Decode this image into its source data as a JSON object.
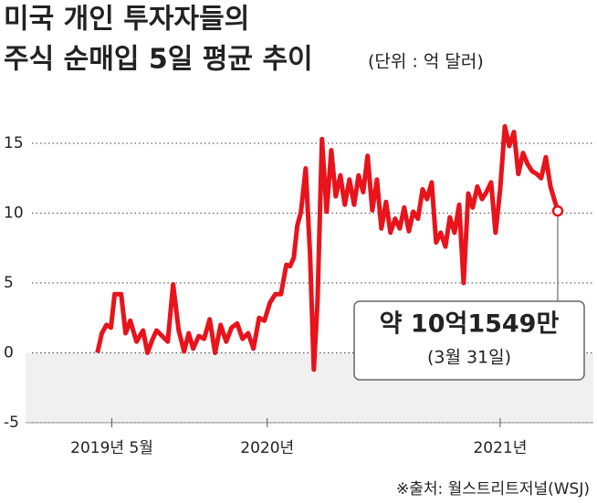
{
  "chart_data": {
    "type": "line",
    "title": "미국 개인 투자자들의",
    "subtitle": "주식 순매입 5일 평균 추이",
    "unit": "(단위 : 억 달러)",
    "source": "※출처: 월스트리트저널(WSJ)",
    "annotation": {
      "label": "약 10억1549만",
      "date": "(3월 31일)"
    },
    "x": [
      2019.271,
      2019.29,
      2019.31,
      2019.329,
      2019.345,
      2019.373,
      2019.392,
      2019.412,
      2019.439,
      2019.467,
      2019.486,
      2019.506,
      2019.525,
      2019.549,
      2019.573,
      2019.596,
      2019.62,
      2019.643,
      2019.663,
      2019.682,
      2019.706,
      2019.729,
      2019.753,
      2019.776,
      2019.8,
      2019.824,
      2019.847,
      2019.871,
      2019.894,
      2019.918,
      2019.941,
      2019.965,
      2019.988,
      2020.012,
      2020.035,
      2020.059,
      2020.082,
      2020.098,
      2020.114,
      2020.129,
      2020.145,
      2020.165,
      2020.184,
      2020.2,
      2020.216,
      2020.235,
      2020.255,
      2020.275,
      2020.294,
      2020.314,
      2020.333,
      2020.353,
      2020.373,
      2020.392,
      2020.412,
      2020.431,
      2020.451,
      2020.471,
      2020.49,
      2020.51,
      2020.529,
      2020.549,
      2020.569,
      2020.588,
      2020.608,
      2020.627,
      2020.647,
      2020.667,
      2020.686,
      2020.706,
      2020.725,
      2020.745,
      2020.765,
      2020.784,
      2020.804,
      2020.824,
      2020.843,
      2020.863,
      2020.882,
      2020.902,
      2020.922,
      2020.941,
      2020.961,
      2020.98,
      2021.0,
      2021.02,
      2021.039,
      2021.059,
      2021.078,
      2021.098,
      2021.118,
      2021.137,
      2021.157,
      2021.176,
      2021.196,
      2021.216,
      2021.247
    ],
    "series": [
      {
        "name": "순매입",
        "color": "#e8131b",
        "values": [
          0,
          1.4,
          2,
          1.8,
          4.2,
          4.2,
          1.4,
          2.3,
          0.8,
          1.6,
          0,
          0.9,
          1.6,
          1.2,
          0.8,
          4.9,
          1.6,
          0.1,
          1.4,
          0.3,
          1.2,
          1,
          2.4,
          0,
          2,
          0.8,
          1.8,
          2.1,
          1,
          1.4,
          0.3,
          2.5,
          2.3,
          3.6,
          4.2,
          4.2,
          6.3,
          6.2,
          6.8,
          9.1,
          10.1,
          13.2,
          7,
          -1.2,
          3.7,
          15.3,
          10.1,
          14.5,
          11.2,
          12.7,
          10.6,
          12.4,
          10.6,
          12.7,
          11.5,
          14.1,
          10.2,
          12.4,
          8.9,
          10.8,
          8.6,
          9.6,
          8.9,
          10.4,
          8.7,
          10.1,
          9.6,
          11.7,
          11,
          12.2,
          7.9,
          8.6,
          7.6,
          9.7,
          8.6,
          10.6,
          5,
          11.4,
          10.4,
          11.9,
          11,
          11.5,
          12.2,
          8.6,
          11.7,
          16.2,
          14.8,
          15.8,
          12.8,
          14.3,
          13.5,
          13,
          12.8,
          12.5,
          14,
          11.9,
          10.1549
        ]
      }
    ],
    "xlim": [
      2018.99,
      2021.4
    ],
    "xticks": [
      {
        "value": 2019.333,
        "label": "2019년 5월"
      },
      {
        "value": 2020,
        "label": "2020년"
      },
      {
        "value": 2021,
        "label": "2021년"
      }
    ],
    "ylim": [
      -5,
      18
    ],
    "yticks": [
      15,
      10,
      5,
      0,
      -5
    ],
    "grid": true
  }
}
